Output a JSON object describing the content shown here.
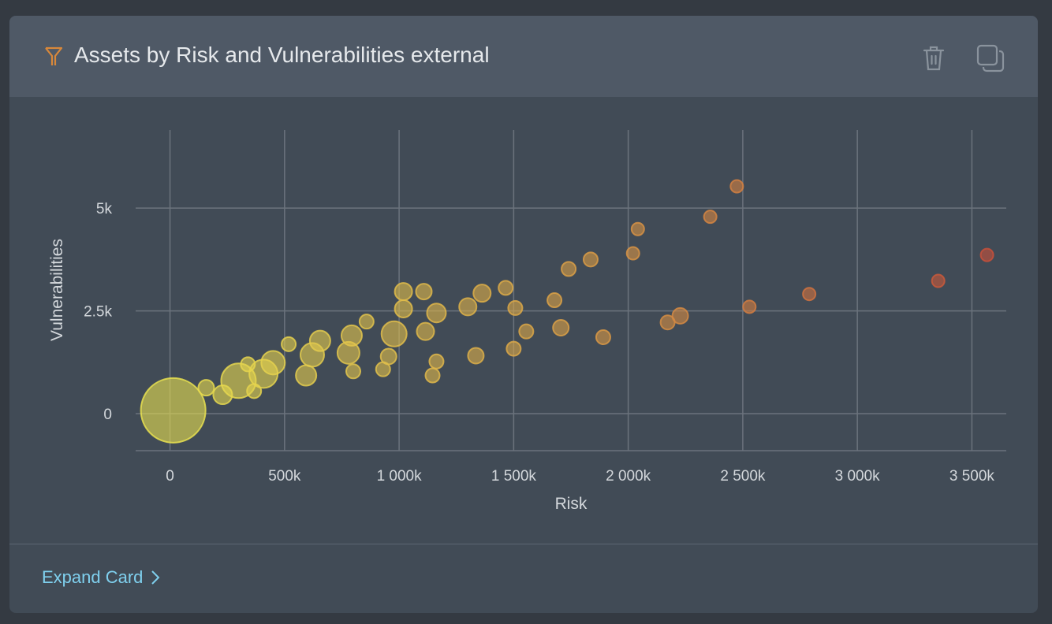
{
  "card": {
    "title": "Assets by Risk and Vulnerabilities external",
    "expand_label": "Expand Card",
    "icons": [
      "filter-icon",
      "trash-icon",
      "duplicate-icon",
      "chevron-right-icon"
    ],
    "accent": "#d9883a",
    "link_color": "#7fd0ee"
  },
  "chart_data": {
    "type": "scatter",
    "variant": "bubble",
    "xlabel": "Risk",
    "ylabel": "Vulnerabilities",
    "xlim": [
      -150,
      3650
    ],
    "ylim": [
      -900,
      6900
    ],
    "x_unit": "k",
    "xticks": [
      0,
      500,
      1000,
      1500,
      2000,
      2500,
      3000,
      3500
    ],
    "xtick_labels": [
      "0",
      "500k",
      "1 000k",
      "1 500k",
      "2 000k",
      "2 500k",
      "3 000k",
      "3 500k"
    ],
    "yticks": [
      0,
      2500,
      5000
    ],
    "ytick_labels": [
      "0",
      "2.5k",
      "5k"
    ],
    "grid": true,
    "color_low": "#e8e050",
    "color_high": "#c8503a",
    "points": [
      {
        "x": 14,
        "y": 80,
        "size": 41
      },
      {
        "x": 158,
        "y": 630,
        "size": 10
      },
      {
        "x": 230,
        "y": 460,
        "size": 12
      },
      {
        "x": 299,
        "y": 800,
        "size": 22
      },
      {
        "x": 340,
        "y": 1200,
        "size": 9
      },
      {
        "x": 367,
        "y": 550,
        "size": 9
      },
      {
        "x": 408,
        "y": 970,
        "size": 18
      },
      {
        "x": 450,
        "y": 1240,
        "size": 15
      },
      {
        "x": 518,
        "y": 1690,
        "size": 9
      },
      {
        "x": 594,
        "y": 930,
        "size": 13
      },
      {
        "x": 621,
        "y": 1430,
        "size": 15
      },
      {
        "x": 655,
        "y": 1770,
        "size": 13
      },
      {
        "x": 779,
        "y": 1480,
        "size": 14
      },
      {
        "x": 793,
        "y": 1900,
        "size": 13
      },
      {
        "x": 800,
        "y": 1030,
        "size": 9
      },
      {
        "x": 858,
        "y": 2240,
        "size": 9
      },
      {
        "x": 930,
        "y": 1080,
        "size": 9
      },
      {
        "x": 954,
        "y": 1390,
        "size": 10
      },
      {
        "x": 978,
        "y": 1940,
        "size": 16
      },
      {
        "x": 1019,
        "y": 2970,
        "size": 11
      },
      {
        "x": 1019,
        "y": 2550,
        "size": 11
      },
      {
        "x": 1108,
        "y": 2970,
        "size": 10
      },
      {
        "x": 1115,
        "y": 2000,
        "size": 11
      },
      {
        "x": 1146,
        "y": 930,
        "size": 9
      },
      {
        "x": 1163,
        "y": 1270,
        "size": 9
      },
      {
        "x": 1163,
        "y": 2450,
        "size": 12
      },
      {
        "x": 1300,
        "y": 2600,
        "size": 11
      },
      {
        "x": 1335,
        "y": 1410,
        "size": 10
      },
      {
        "x": 1362,
        "y": 2930,
        "size": 11
      },
      {
        "x": 1465,
        "y": 3060,
        "size": 9
      },
      {
        "x": 1500,
        "y": 1580,
        "size": 9
      },
      {
        "x": 1507,
        "y": 2570,
        "size": 9
      },
      {
        "x": 1555,
        "y": 2000,
        "size": 9
      },
      {
        "x": 1678,
        "y": 2760,
        "size": 9
      },
      {
        "x": 1706,
        "y": 2090,
        "size": 10
      },
      {
        "x": 1740,
        "y": 3520,
        "size": 9
      },
      {
        "x": 1836,
        "y": 3750,
        "size": 9
      },
      {
        "x": 1891,
        "y": 1860,
        "size": 9
      },
      {
        "x": 2021,
        "y": 3900,
        "size": 8
      },
      {
        "x": 2042,
        "y": 4490,
        "size": 8
      },
      {
        "x": 2172,
        "y": 2220,
        "size": 9
      },
      {
        "x": 2227,
        "y": 2380,
        "size": 10
      },
      {
        "x": 2358,
        "y": 4790,
        "size": 8
      },
      {
        "x": 2474,
        "y": 5530,
        "size": 8
      },
      {
        "x": 2529,
        "y": 2600,
        "size": 8
      },
      {
        "x": 2790,
        "y": 2910,
        "size": 8
      },
      {
        "x": 3353,
        "y": 3230,
        "size": 8
      },
      {
        "x": 3566,
        "y": 3860,
        "size": 8
      }
    ]
  }
}
